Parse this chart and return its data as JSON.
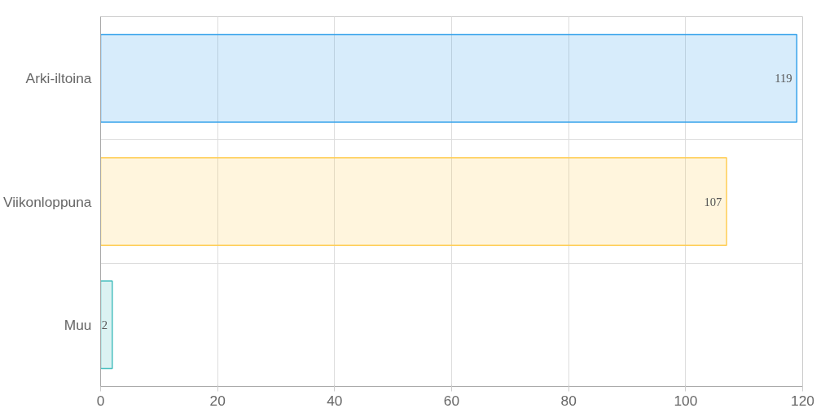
{
  "chart_data": {
    "type": "bar",
    "orientation": "horizontal",
    "categories": [
      "Arki-iltoina",
      "Viikonloppuna",
      "Muu"
    ],
    "values": [
      119,
      107,
      2
    ],
    "colors": [
      "#36a2eb",
      "#ffce56",
      "#4bc0c0"
    ],
    "xlim": [
      0,
      120
    ],
    "xticks": [
      0,
      20,
      40,
      60,
      80,
      100,
      120
    ],
    "grid": true,
    "data_labels": true
  }
}
